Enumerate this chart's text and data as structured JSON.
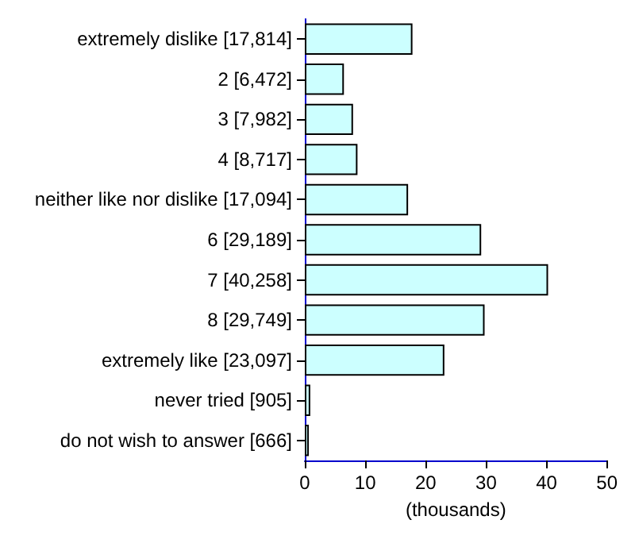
{
  "chart_data": {
    "type": "bar",
    "orientation": "horizontal",
    "xlabel": "(thousands)",
    "categories": [
      "extremely dislike [17,814]",
      "2 [6,472]",
      "3 [7,982]",
      "4 [8,717]",
      "neither like nor dislike [17,094]",
      "6 [29,189]",
      "7 [40,258]",
      "8 [29,749]",
      "extremely like [23,097]",
      "never tried [905]",
      "do not wish to answer [666]"
    ],
    "values": [
      17.814,
      6.472,
      7.982,
      8.717,
      17.094,
      29.189,
      40.258,
      29.749,
      23.097,
      0.905,
      0.666
    ],
    "color": "#ccffff",
    "xlim": [
      0,
      50
    ],
    "xticks": [
      0,
      10,
      20,
      30,
      40,
      50
    ]
  }
}
